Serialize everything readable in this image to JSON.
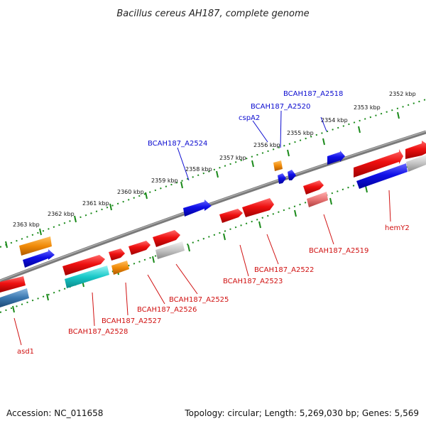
{
  "title": "Bacillus cereus AH187, complete genome",
  "footer": {
    "accession": "Accession: NC_011658",
    "topology": "Topology: circular; Length: 5,269,030 bp; Genes: 5,569"
  },
  "colors": {
    "backbone": "#7a7a7a",
    "tick_dots": "#1a8a1a",
    "label_top": "#0b0bd0",
    "label_bottom": "#d01010",
    "red": "#e8141e",
    "blue": "#1010e0",
    "orange": "#f08a08",
    "cyan": "#18c8c8",
    "grey": "#bdbdbd",
    "pink": "#e87474",
    "steelblue": "#3a78b0"
  },
  "ruler_labels": [
    "2352 kbp",
    "2353 kbp",
    "2354 kbp",
    "2355 kbp",
    "2356 kbp",
    "2357 kbp",
    "2358 kbp",
    "2359 kbp",
    "2360 kbp",
    "2361 kbp",
    "2362 kbp",
    "2363 kbp"
  ],
  "gene_labels_top": [
    "BCAH187_A2518",
    "BCAH187_A2520",
    "cspA2",
    "BCAH187_A2524"
  ],
  "gene_labels_bottom": [
    "hemY2",
    "BCAH187_A2519",
    "BCAH187_A2522",
    "BCAH187_A2523",
    "BCAH187_A2525",
    "BCAH187_A2526",
    "BCAH187_A2527",
    "BCAH187_A2528",
    "asd1"
  ]
}
